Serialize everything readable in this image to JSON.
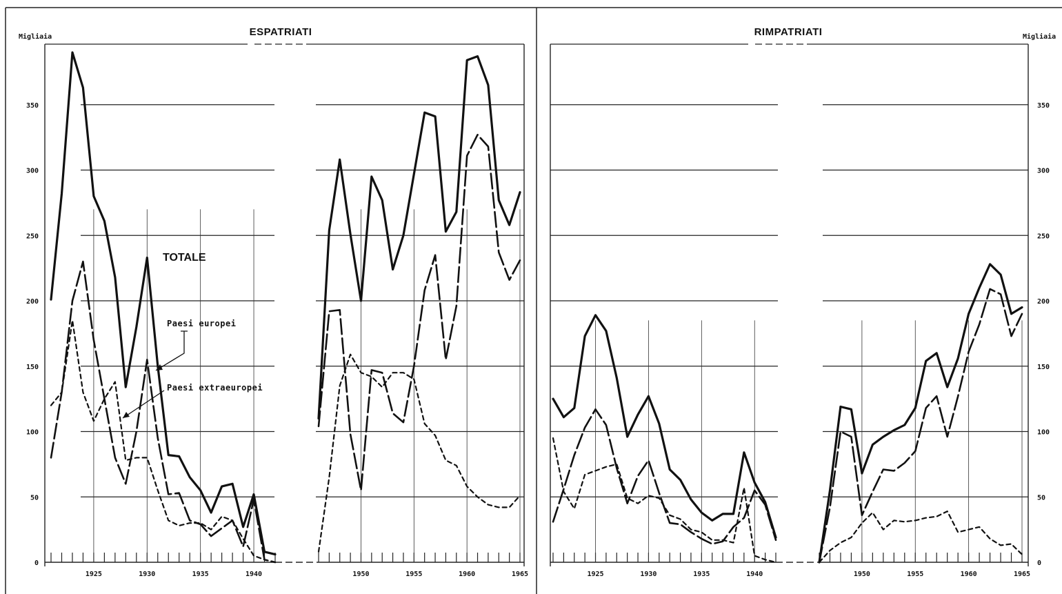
{
  "chart_data": [
    {
      "type": "line",
      "title": "ESPATRIATI",
      "unit_label": "Migliaia",
      "ylim": [
        0,
        400
      ],
      "yticks": [
        0,
        50,
        100,
        150,
        200,
        250,
        300,
        350
      ],
      "xlim": [
        1921,
        1965
      ],
      "xticks": [
        1925,
        1930,
        1935,
        1940,
        1950,
        1955,
        1960,
        1965
      ],
      "grid": true,
      "legend": "inline",
      "annotations": [
        "TOTALE",
        "Paesi europei",
        "Paesi extraeuropei"
      ],
      "series": [
        {
          "style": "solid-thick",
          "segments": [
            {
              "x": [
                1921,
                1922,
                1923,
                1924,
                1925,
                1926,
                1927,
                1928,
                1929,
                1930,
                1931,
                1932,
                1933,
                1934,
                1935,
                1936,
                1937,
                1938,
                1939,
                1940,
                1941,
                1942
              ],
              "y": [
                201,
                282,
                390,
                363,
                280,
                261,
                218,
                134,
                180,
                233,
                150,
                82,
                81,
                65,
                55,
                38,
                58,
                60,
                27,
                52,
                8,
                6
              ]
            },
            {
              "x": [
                1946,
                1947,
                1948,
                1949,
                1950,
                1951,
                1952,
                1953,
                1954,
                1955,
                1956,
                1957,
                1958,
                1959,
                1960,
                1961,
                1962,
                1963,
                1964,
                1965
              ],
              "y": [
                110,
                254,
                308,
                251,
                200,
                295,
                277,
                224,
                250,
                297,
                344,
                341,
                253,
                268,
                384,
                387,
                365,
                277,
                258,
                283
              ]
            }
          ]
        },
        {
          "style": "long-dash",
          "segments": [
            {
              "x": [
                1921,
                1922,
                1923,
                1924,
                1925,
                1926,
                1927,
                1928,
                1929,
                1930,
                1931,
                1932,
                1933,
                1934,
                1935,
                1936,
                1937,
                1938,
                1939,
                1940,
                1941,
                1942
              ],
              "y": [
                80,
                130,
                200,
                230,
                170,
                125,
                80,
                60,
                100,
                155,
                95,
                52,
                53,
                32,
                29,
                20,
                26,
                32,
                12,
                48,
                2,
                0
              ]
            },
            {
              "x": [
                1946,
                1947,
                1948,
                1949,
                1950,
                1951,
                1952,
                1953,
                1954,
                1955,
                1956,
                1957,
                1958,
                1959,
                1960,
                1961,
                1962,
                1963,
                1964,
                1965
              ],
              "y": [
                104,
                192,
                193,
                98,
                55,
                147,
                145,
                114,
                107,
                150,
                208,
                235,
                155,
                196,
                311,
                327,
                318,
                237,
                216,
                231
              ]
            }
          ]
        },
        {
          "style": "short-dash",
          "segments": [
            {
              "x": [
                1921,
                1922,
                1923,
                1924,
                1925,
                1926,
                1927,
                1928,
                1929,
                1930,
                1931,
                1932,
                1933,
                1934,
                1935,
                1936,
                1937,
                1938,
                1939,
                1940,
                1941,
                1942
              ],
              "y": [
                120,
                130,
                185,
                130,
                108,
                125,
                138,
                78,
                80,
                80,
                55,
                32,
                28,
                30,
                30,
                25,
                35,
                32,
                18,
                5,
                2,
                0
              ]
            },
            {
              "x": [
                1946,
                1947,
                1948,
                1949,
                1950,
                1951,
                1952,
                1953,
                1954,
                1955,
                1956,
                1957,
                1958,
                1959,
                1960,
                1961,
                1962,
                1963,
                1964,
                1965
              ],
              "y": [
                8,
                65,
                135,
                159,
                145,
                142,
                134,
                145,
                145,
                140,
                106,
                97,
                78,
                74,
                58,
                50,
                44,
                42,
                42,
                51
              ]
            }
          ]
        }
      ]
    },
    {
      "type": "line",
      "title": "RIMPATRIATI",
      "unit_label": "Migliaia",
      "ylim": [
        0,
        400
      ],
      "yticks": [
        0,
        50,
        100,
        150,
        200,
        250,
        300,
        350
      ],
      "xlim": [
        1921,
        1965
      ],
      "xticks": [
        1925,
        1930,
        1935,
        1940,
        1950,
        1955,
        1960,
        1965
      ],
      "grid": true,
      "legend": "none",
      "series": [
        {
          "style": "solid-thick",
          "segments": [
            {
              "x": [
                1921,
                1922,
                1923,
                1924,
                1925,
                1926,
                1927,
                1928,
                1929,
                1930,
                1931,
                1932,
                1933,
                1934,
                1935,
                1936,
                1937,
                1938,
                1939,
                1940,
                1941,
                1942
              ],
              "y": [
                125,
                111,
                118,
                173,
                189,
                177,
                141,
                96,
                113,
                127,
                106,
                71,
                63,
                48,
                38,
                32,
                37,
                37,
                84,
                61,
                46,
                19
              ]
            },
            {
              "x": [
                1946,
                1947,
                1948,
                1949,
                1950,
                1951,
                1952,
                1953,
                1954,
                1955,
                1956,
                1957,
                1958,
                1959,
                1960,
                1961,
                1962,
                1963,
                1964,
                1965
              ],
              "y": [
                0,
                55,
                119,
                117,
                68,
                90,
                96,
                101,
                105,
                118,
                154,
                160,
                134,
                156,
                190,
                210,
                228,
                220,
                190,
                195
              ]
            }
          ]
        },
        {
          "style": "long-dash",
          "segments": [
            {
              "x": [
                1921,
                1922,
                1923,
                1924,
                1925,
                1926,
                1927,
                1928,
                1929,
                1930,
                1931,
                1932,
                1933,
                1934,
                1935,
                1936,
                1937,
                1938,
                1939,
                1940,
                1941,
                1942
              ],
              "y": [
                31,
                56,
                82,
                103,
                117,
                105,
                72,
                45,
                66,
                78,
                53,
                30,
                29,
                23,
                18,
                14,
                16,
                27,
                34,
                55,
                44,
                17
              ]
            },
            {
              "x": [
                1946,
                1947,
                1948,
                1949,
                1950,
                1951,
                1952,
                1953,
                1954,
                1955,
                1956,
                1957,
                1958,
                1959,
                1960,
                1961,
                1962,
                1963,
                1964,
                1965
              ],
              "y": [
                0,
                42,
                100,
                96,
                36,
                54,
                71,
                70,
                76,
                85,
                118,
                127,
                96,
                127,
                161,
                182,
                209,
                205,
                173,
                190
              ]
            }
          ]
        },
        {
          "style": "short-dash",
          "segments": [
            {
              "x": [
                1921,
                1922,
                1923,
                1924,
                1925,
                1926,
                1927,
                1928,
                1929,
                1930,
                1931,
                1932,
                1933,
                1934,
                1935,
                1936,
                1937,
                1938,
                1939,
                1940,
                1941,
                1942
              ],
              "y": [
                95,
                54,
                41,
                67,
                70,
                73,
                75,
                49,
                45,
                51,
                49,
                36,
                33,
                25,
                23,
                17,
                17,
                15,
                57,
                5,
                2,
                0
              ]
            },
            {
              "x": [
                1946,
                1947,
                1948,
                1949,
                1950,
                1951,
                1952,
                1953,
                1954,
                1955,
                1956,
                1957,
                1958,
                1959,
                1960,
                1961,
                1962,
                1963,
                1964,
                1965
              ],
              "y": [
                0,
                9,
                15,
                19,
                30,
                38,
                25,
                32,
                31,
                32,
                34,
                35,
                39,
                23,
                25,
                27,
                18,
                13,
                14,
                6
              ]
            }
          ]
        }
      ]
    }
  ]
}
